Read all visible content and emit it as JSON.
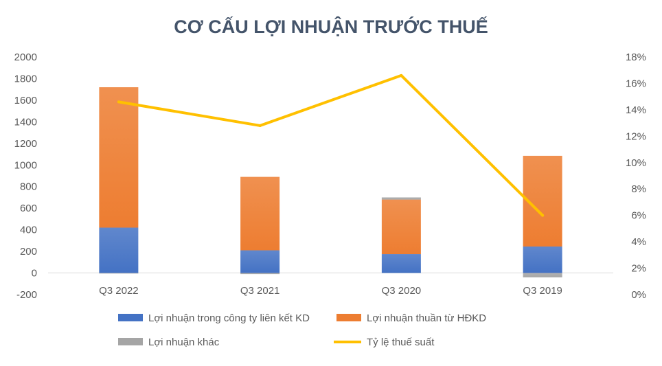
{
  "chart_data": {
    "type": "bar",
    "stacked": true,
    "title": "CƠ CẤU LỢI NHUẬN TRƯỚC THUẾ",
    "categories": [
      "Q3 2022",
      "Q3 2021",
      "Q3 2020",
      "Q3 2019"
    ],
    "series": [
      {
        "name": "Lợi nhuận trong công ty liên kết KD",
        "type": "bar",
        "axis": "left",
        "color": "#4472c4",
        "values": [
          420,
          210,
          175,
          245
        ]
      },
      {
        "name": "Lợi nhuận thuần từ HĐKD",
        "type": "bar",
        "axis": "left",
        "color": "#ed7d31",
        "values": [
          1300,
          680,
          505,
          840
        ]
      },
      {
        "name": "Lợi nhuận khác",
        "type": "bar",
        "axis": "left",
        "color": "#a5a5a5",
        "values": [
          -5,
          -10,
          20,
          -40
        ]
      },
      {
        "name": "Tỷ lệ thuế suất",
        "type": "line",
        "axis": "right",
        "color": "#ffc000",
        "values": [
          0.146,
          0.128,
          0.166,
          0.06
        ]
      }
    ],
    "y_left": {
      "min": -200,
      "max": 2000,
      "step": 200,
      "ticks": [
        "-200",
        "0",
        "200",
        "400",
        "600",
        "800",
        "1000",
        "1200",
        "1400",
        "1600",
        "1800",
        "2000"
      ]
    },
    "y_right": {
      "min": 0,
      "max": 0.18,
      "step": 0.02,
      "ticks": [
        "0%",
        "2%",
        "4%",
        "6%",
        "8%",
        "10%",
        "12%",
        "14%",
        "16%",
        "18%"
      ]
    },
    "legend_position": "bottom",
    "grid": false
  }
}
